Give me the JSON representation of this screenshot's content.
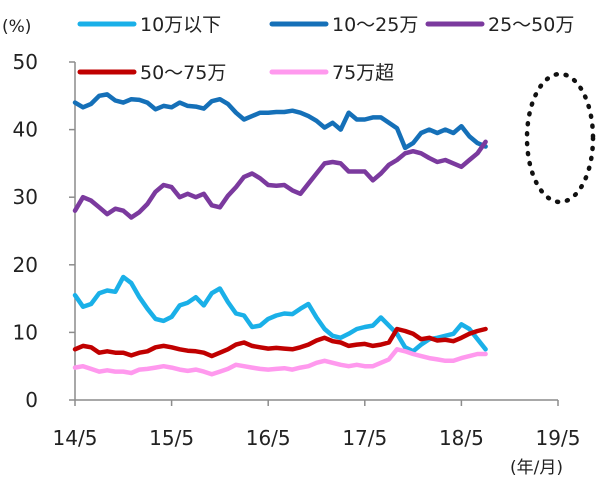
{
  "chart_data": {
    "type": "line",
    "title": "",
    "y_unit": "(%)",
    "x_unit": "(年/月)",
    "xlabel": "",
    "ylabel": "",
    "ylim": [
      0,
      50
    ],
    "yticks": [
      0,
      10,
      20,
      30,
      40,
      50
    ],
    "xlim": [
      0,
      60
    ],
    "x_tick_labels": [
      "14/5",
      "15/5",
      "16/5",
      "17/5",
      "18/5",
      "19/5"
    ],
    "x_tick_positions": [
      0,
      12,
      24,
      36,
      48,
      60
    ],
    "grid": false,
    "legend_position": "top",
    "annotation": "dotted-ellipse-around-latest-values",
    "series": [
      {
        "name": "10万以下",
        "color": "#1ab0e8",
        "points": [
          [
            0,
            15.5
          ],
          [
            1,
            13.8
          ],
          [
            2,
            14.2
          ],
          [
            3,
            15.8
          ],
          [
            4,
            16.2
          ],
          [
            5,
            16.0
          ],
          [
            6,
            18.2
          ],
          [
            7,
            17.3
          ],
          [
            8,
            15.2
          ],
          [
            9,
            13.5
          ],
          [
            10,
            12.0
          ],
          [
            11,
            11.7
          ],
          [
            12,
            12.3
          ],
          [
            13,
            14.0
          ],
          [
            14,
            14.4
          ],
          [
            15,
            15.2
          ],
          [
            16,
            14.0
          ],
          [
            17,
            15.8
          ],
          [
            18,
            16.5
          ],
          [
            19,
            14.5
          ],
          [
            20,
            12.8
          ],
          [
            21,
            12.5
          ],
          [
            22,
            10.8
          ],
          [
            23,
            11.0
          ],
          [
            24,
            12.0
          ],
          [
            25,
            12.5
          ],
          [
            26,
            12.8
          ],
          [
            27,
            12.7
          ],
          [
            28,
            13.5
          ],
          [
            29,
            14.2
          ],
          [
            30,
            12.2
          ],
          [
            31,
            10.5
          ],
          [
            32,
            9.5
          ],
          [
            33,
            9.2
          ],
          [
            34,
            9.8
          ],
          [
            35,
            10.5
          ],
          [
            36,
            10.8
          ],
          [
            37,
            11.0
          ],
          [
            38,
            12.2
          ],
          [
            39,
            11.0
          ],
          [
            40,
            9.8
          ],
          [
            41,
            7.8
          ],
          [
            42,
            7.2
          ],
          [
            43,
            8.2
          ],
          [
            44,
            9.0
          ],
          [
            45,
            9.2
          ],
          [
            46,
            9.5
          ],
          [
            47,
            9.8
          ],
          [
            48,
            11.2
          ],
          [
            49,
            10.5
          ],
          [
            50,
            9.0
          ],
          [
            51,
            7.5
          ]
        ]
      },
      {
        "name": "10～25万",
        "color": "#1570b8",
        "points": [
          [
            0,
            44.0
          ],
          [
            1,
            43.3
          ],
          [
            2,
            43.8
          ],
          [
            3,
            45.0
          ],
          [
            4,
            45.2
          ],
          [
            5,
            44.3
          ],
          [
            6,
            44.0
          ],
          [
            7,
            44.5
          ],
          [
            8,
            44.4
          ],
          [
            9,
            44.0
          ],
          [
            10,
            43.0
          ],
          [
            11,
            43.5
          ],
          [
            12,
            43.3
          ],
          [
            13,
            44.0
          ],
          [
            14,
            43.5
          ],
          [
            15,
            43.4
          ],
          [
            16,
            43.1
          ],
          [
            17,
            44.2
          ],
          [
            18,
            44.5
          ],
          [
            19,
            43.8
          ],
          [
            20,
            42.5
          ],
          [
            21,
            41.5
          ],
          [
            22,
            42.0
          ],
          [
            23,
            42.5
          ],
          [
            24,
            42.5
          ],
          [
            25,
            42.6
          ],
          [
            26,
            42.6
          ],
          [
            27,
            42.8
          ],
          [
            28,
            42.5
          ],
          [
            29,
            42.0
          ],
          [
            30,
            41.3
          ],
          [
            31,
            40.3
          ],
          [
            32,
            41.0
          ],
          [
            33,
            40.0
          ],
          [
            34,
            42.5
          ],
          [
            35,
            41.5
          ],
          [
            36,
            41.5
          ],
          [
            37,
            41.8
          ],
          [
            38,
            41.8
          ],
          [
            39,
            41.0
          ],
          [
            40,
            40.2
          ],
          [
            41,
            37.3
          ],
          [
            42,
            38.0
          ],
          [
            43,
            39.5
          ],
          [
            44,
            40.0
          ],
          [
            45,
            39.5
          ],
          [
            46,
            40.0
          ],
          [
            47,
            39.5
          ],
          [
            48,
            40.5
          ],
          [
            49,
            39.0
          ],
          [
            50,
            38.0
          ],
          [
            51,
            37.5
          ]
        ]
      },
      {
        "name": "25～50万",
        "color": "#7b3a9e",
        "points": [
          [
            0,
            28.0
          ],
          [
            1,
            30.0
          ],
          [
            2,
            29.5
          ],
          [
            3,
            28.5
          ],
          [
            4,
            27.5
          ],
          [
            5,
            28.3
          ],
          [
            6,
            28.0
          ],
          [
            7,
            27.0
          ],
          [
            8,
            27.8
          ],
          [
            9,
            29.0
          ],
          [
            10,
            30.8
          ],
          [
            11,
            31.8
          ],
          [
            12,
            31.5
          ],
          [
            13,
            30.0
          ],
          [
            14,
            30.5
          ],
          [
            15,
            30.0
          ],
          [
            16,
            30.5
          ],
          [
            17,
            28.8
          ],
          [
            18,
            28.5
          ],
          [
            19,
            30.2
          ],
          [
            20,
            31.5
          ],
          [
            21,
            33.0
          ],
          [
            22,
            33.5
          ],
          [
            23,
            32.8
          ],
          [
            24,
            31.8
          ],
          [
            25,
            31.7
          ],
          [
            26,
            31.8
          ],
          [
            27,
            31.0
          ],
          [
            28,
            30.5
          ],
          [
            29,
            32.0
          ],
          [
            30,
            33.5
          ],
          [
            31,
            35.0
          ],
          [
            32,
            35.2
          ],
          [
            33,
            35.0
          ],
          [
            34,
            33.8
          ],
          [
            35,
            33.8
          ],
          [
            36,
            33.8
          ],
          [
            37,
            32.5
          ],
          [
            38,
            33.5
          ],
          [
            39,
            34.8
          ],
          [
            40,
            35.5
          ],
          [
            41,
            36.5
          ],
          [
            42,
            36.8
          ],
          [
            43,
            36.5
          ],
          [
            44,
            35.8
          ],
          [
            45,
            35.2
          ],
          [
            46,
            35.5
          ],
          [
            47,
            35.0
          ],
          [
            48,
            34.5
          ],
          [
            49,
            35.5
          ],
          [
            50,
            36.5
          ],
          [
            51,
            38.2
          ]
        ]
      },
      {
        "name": "50～75万",
        "color": "#c00000",
        "points": [
          [
            0,
            7.5
          ],
          [
            1,
            8.0
          ],
          [
            2,
            7.8
          ],
          [
            3,
            7.0
          ],
          [
            4,
            7.2
          ],
          [
            5,
            7.0
          ],
          [
            6,
            7.0
          ],
          [
            7,
            6.6
          ],
          [
            8,
            7.0
          ],
          [
            9,
            7.2
          ],
          [
            10,
            7.8
          ],
          [
            11,
            8.0
          ],
          [
            12,
            7.8
          ],
          [
            13,
            7.5
          ],
          [
            14,
            7.3
          ],
          [
            15,
            7.2
          ],
          [
            16,
            7.0
          ],
          [
            17,
            6.5
          ],
          [
            18,
            7.0
          ],
          [
            19,
            7.5
          ],
          [
            20,
            8.2
          ],
          [
            21,
            8.5
          ],
          [
            22,
            8.0
          ],
          [
            23,
            7.8
          ],
          [
            24,
            7.6
          ],
          [
            25,
            7.7
          ],
          [
            26,
            7.6
          ],
          [
            27,
            7.5
          ],
          [
            28,
            7.8
          ],
          [
            29,
            8.2
          ],
          [
            30,
            8.8
          ],
          [
            31,
            9.2
          ],
          [
            32,
            8.7
          ],
          [
            33,
            8.5
          ],
          [
            34,
            8.0
          ],
          [
            35,
            8.2
          ],
          [
            36,
            8.3
          ],
          [
            37,
            8.0
          ],
          [
            38,
            8.2
          ],
          [
            39,
            8.5
          ],
          [
            40,
            10.5
          ],
          [
            41,
            10.2
          ],
          [
            42,
            9.8
          ],
          [
            43,
            9.0
          ],
          [
            44,
            9.2
          ],
          [
            45,
            8.8
          ],
          [
            46,
            8.9
          ],
          [
            47,
            8.7
          ],
          [
            48,
            9.2
          ],
          [
            49,
            9.8
          ],
          [
            50,
            10.2
          ],
          [
            51,
            10.5
          ]
        ]
      },
      {
        "name": "75万超",
        "color": "#ff99ee",
        "points": [
          [
            0,
            4.8
          ],
          [
            1,
            5.0
          ],
          [
            2,
            4.6
          ],
          [
            3,
            4.2
          ],
          [
            4,
            4.4
          ],
          [
            5,
            4.2
          ],
          [
            6,
            4.2
          ],
          [
            7,
            4.0
          ],
          [
            8,
            4.5
          ],
          [
            9,
            4.6
          ],
          [
            10,
            4.8
          ],
          [
            11,
            5.0
          ],
          [
            12,
            4.8
          ],
          [
            13,
            4.5
          ],
          [
            14,
            4.3
          ],
          [
            15,
            4.5
          ],
          [
            16,
            4.2
          ],
          [
            17,
            3.8
          ],
          [
            18,
            4.2
          ],
          [
            19,
            4.6
          ],
          [
            20,
            5.2
          ],
          [
            21,
            5.0
          ],
          [
            22,
            4.8
          ],
          [
            23,
            4.6
          ],
          [
            24,
            4.5
          ],
          [
            25,
            4.6
          ],
          [
            26,
            4.7
          ],
          [
            27,
            4.5
          ],
          [
            28,
            4.8
          ],
          [
            29,
            5.0
          ],
          [
            30,
            5.5
          ],
          [
            31,
            5.8
          ],
          [
            32,
            5.5
          ],
          [
            33,
            5.2
          ],
          [
            34,
            5.0
          ],
          [
            35,
            5.2
          ],
          [
            36,
            5.0
          ],
          [
            37,
            5.0
          ],
          [
            38,
            5.5
          ],
          [
            39,
            6.0
          ],
          [
            40,
            7.5
          ],
          [
            41,
            7.2
          ],
          [
            42,
            6.8
          ],
          [
            43,
            6.5
          ],
          [
            44,
            6.2
          ],
          [
            45,
            6.0
          ],
          [
            46,
            5.8
          ],
          [
            47,
            5.8
          ],
          [
            48,
            6.2
          ],
          [
            49,
            6.5
          ],
          [
            50,
            6.8
          ],
          [
            51,
            6.8
          ]
        ]
      }
    ]
  }
}
